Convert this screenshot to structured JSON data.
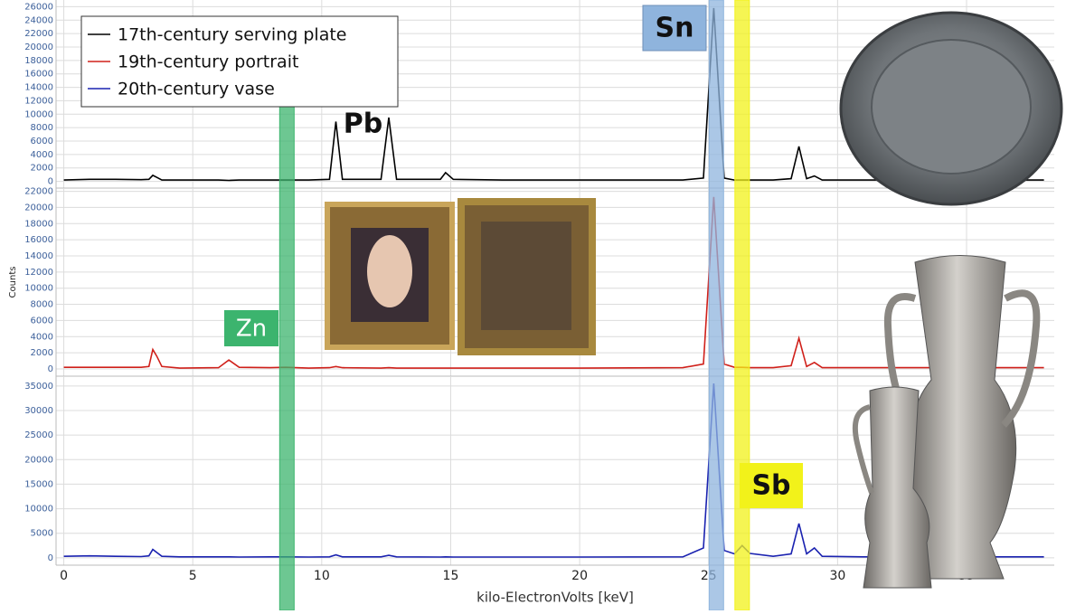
{
  "chart_data": [
    {
      "type": "line",
      "xlim": [
        -0.3,
        38.4
      ],
      "xticks": [
        0,
        5,
        10,
        15,
        20,
        25,
        30,
        35
      ],
      "ylim": [
        -1000,
        27000
      ],
      "yticks": [
        0,
        2000,
        4000,
        6000,
        8000,
        10000,
        12000,
        14000,
        16000,
        18000,
        20000,
        22000,
        24000,
        26000
      ],
      "grid": true,
      "x": [
        0,
        1,
        2,
        3,
        3.3,
        3.45,
        3.6,
        3.8,
        4.5,
        6,
        6.4,
        6.8,
        8,
        8.6,
        9.5,
        10.3,
        10.55,
        10.8,
        12.3,
        12.6,
        12.9,
        14.6,
        14.8,
        15.1,
        17,
        20,
        24,
        24.8,
        25.2,
        25.6,
        26,
        26.3,
        26.6,
        27.5,
        28.2,
        28.5,
        28.8,
        29.1,
        29.4,
        31,
        35,
        38
      ],
      "series": [
        {
          "name": "17th-century serving plate",
          "color": "#000000",
          "values": [
            200,
            300,
            300,
            250,
            300,
            900,
            600,
            200,
            200,
            200,
            150,
            200,
            200,
            200,
            200,
            300,
            8900,
            300,
            300,
            9500,
            300,
            300,
            1300,
            300,
            200,
            200,
            200,
            500,
            25800,
            500,
            200,
            200,
            200,
            200,
            400,
            5200,
            400,
            800,
            200,
            200,
            200,
            200
          ]
        }
      ],
      "annotations": [
        {
          "text": "Pb",
          "x": 11.6
        }
      ]
    },
    {
      "type": "line",
      "xlim": [
        -0.3,
        38.4
      ],
      "xticks": [
        0,
        5,
        10,
        15,
        20,
        25,
        30,
        35
      ],
      "ylim": [
        -900,
        22400
      ],
      "yticks": [
        0,
        2000,
        4000,
        6000,
        8000,
        10000,
        12000,
        14000,
        16000,
        18000,
        20000,
        22000
      ],
      "grid": true,
      "y_label": "Counts",
      "x": [
        0,
        1,
        2,
        3,
        3.3,
        3.45,
        3.6,
        3.8,
        4.5,
        6,
        6.4,
        6.8,
        8,
        8.6,
        9.5,
        10.3,
        10.55,
        10.8,
        12.3,
        12.6,
        12.9,
        14.6,
        14.8,
        15.1,
        17,
        20,
        24,
        24.8,
        25.2,
        25.6,
        26,
        26.3,
        26.6,
        27.5,
        28.2,
        28.5,
        28.8,
        29.1,
        29.4,
        31,
        35,
        38
      ],
      "series": [
        {
          "name": "19th-century portrait",
          "color": "#d0201a",
          "values": [
            200,
            200,
            200,
            200,
            300,
            2400,
            1600,
            300,
            100,
            150,
            1100,
            200,
            150,
            200,
            100,
            150,
            300,
            150,
            100,
            150,
            100,
            100,
            100,
            100,
            100,
            100,
            150,
            600,
            21300,
            600,
            200,
            200,
            150,
            150,
            400,
            3800,
            300,
            800,
            150,
            150,
            150,
            150
          ]
        }
      ]
    },
    {
      "type": "line",
      "xlim": [
        -0.3,
        38.4
      ],
      "xticks": [
        0,
        5,
        10,
        15,
        20,
        25,
        30,
        35
      ],
      "ylim": [
        -1500,
        37000
      ],
      "yticks": [
        0,
        5000,
        10000,
        15000,
        20000,
        25000,
        30000,
        35000
      ],
      "grid": true,
      "x_label": "kilo-ElectronVolts [keV]",
      "x": [
        0,
        1,
        2,
        3,
        3.3,
        3.45,
        3.6,
        3.8,
        4.5,
        6,
        6.4,
        6.8,
        8,
        8.6,
        9.5,
        10.3,
        10.55,
        10.8,
        12.3,
        12.6,
        12.9,
        14.6,
        14.8,
        15.1,
        17,
        20,
        24,
        24.8,
        25.2,
        25.6,
        26,
        26.3,
        26.6,
        27.5,
        28.2,
        28.5,
        28.8,
        29.1,
        29.4,
        31,
        35,
        38
      ],
      "series": [
        {
          "name": "20th-century vase",
          "color": "#1a22b0",
          "values": [
            300,
            400,
            300,
            250,
            400,
            1700,
            1100,
            300,
            200,
            200,
            200,
            150,
            200,
            200,
            150,
            200,
            600,
            200,
            200,
            500,
            200,
            150,
            200,
            150,
            150,
            150,
            200,
            2000,
            35500,
            1500,
            800,
            2500,
            900,
            300,
            800,
            7000,
            800,
            2000,
            300,
            200,
            200,
            200
          ]
        }
      ]
    }
  ],
  "highlights": [
    {
      "text": "Zn",
      "x": 8.65,
      "color": "#3cb46e"
    },
    {
      "text": "Sn",
      "x": 25.3,
      "color": "#8fb4dd"
    },
    {
      "text": "Sb",
      "x": 26.3,
      "color": "#f2f21a"
    }
  ]
}
